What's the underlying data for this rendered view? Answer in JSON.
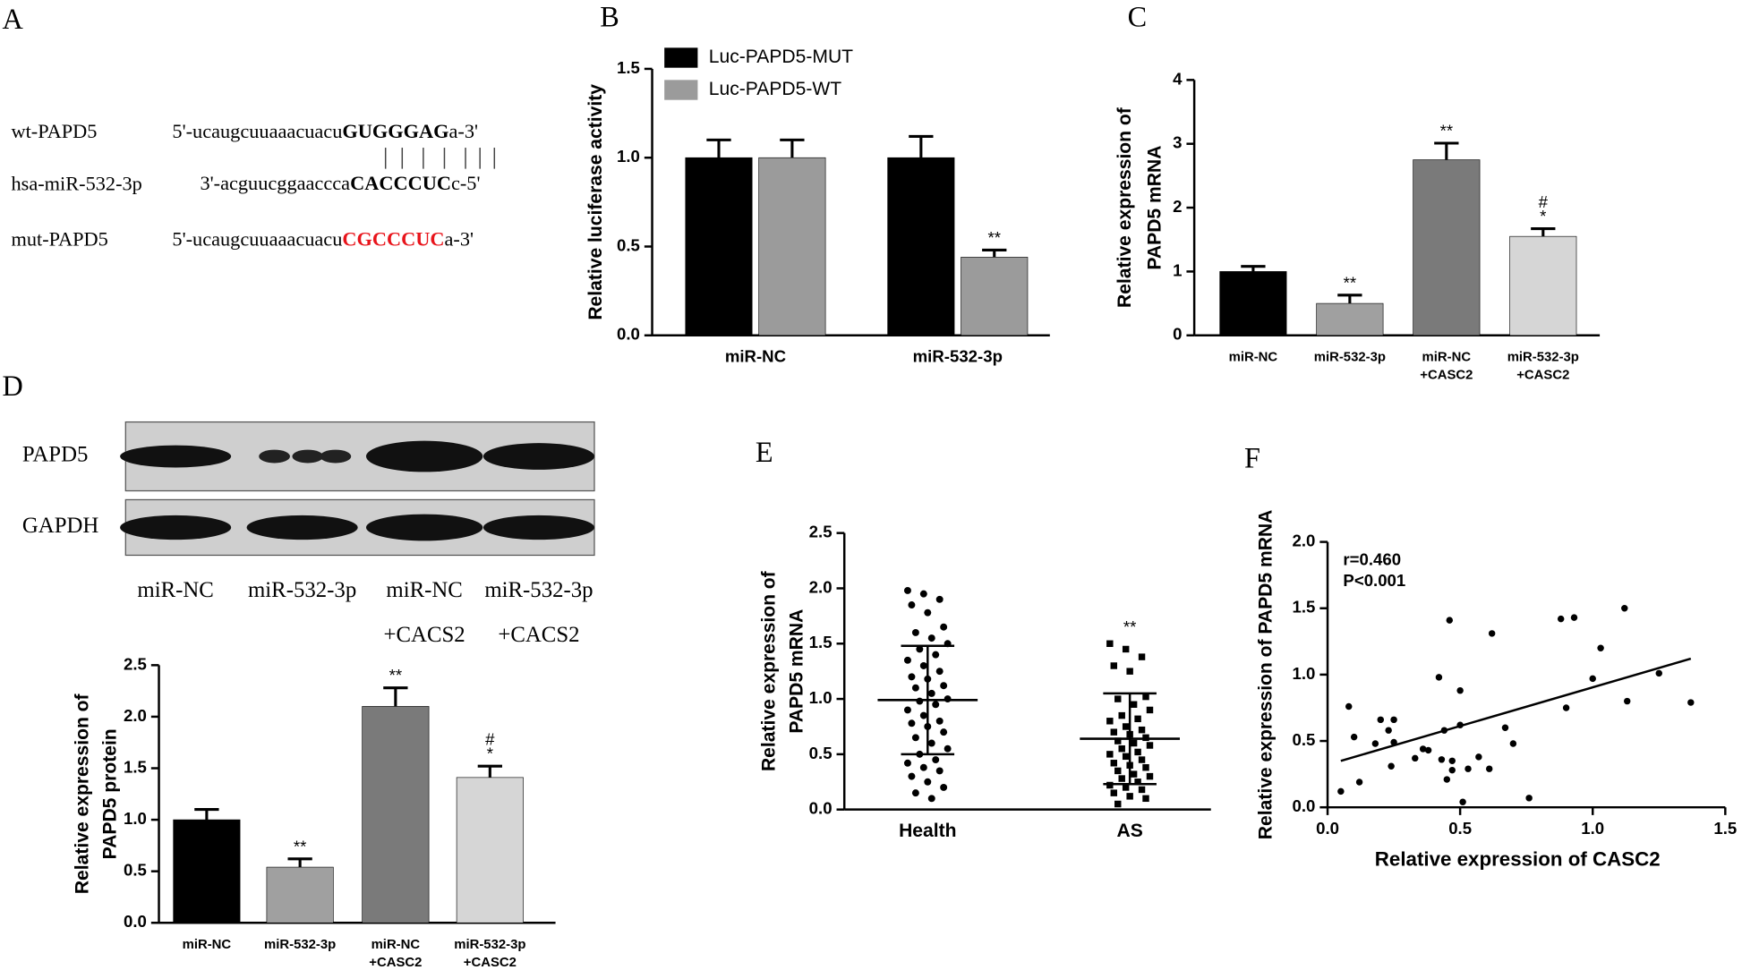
{
  "panel_a": {
    "label": "A",
    "rows": [
      {
        "name": "wt-PAPD5",
        "prefix": "5'-ucaugcuuaaacuacu",
        "site": "GUGGGAG",
        "suffix": "a-3'"
      },
      {
        "name": "hsa-miR-532-3p",
        "prefix": "3'-acguucggaaccca",
        "site": "CACCCUC",
        "suffix": "c-5'"
      },
      {
        "name": "mut-PAPD5",
        "prefix": "5'-ucaugcuuaaacuacu",
        "site": "CGCCCUC",
        "suffix": "a-3'"
      }
    ]
  },
  "panel_d_blot": {
    "label": "D",
    "bands": [
      "PAPD5",
      "GAPDH"
    ],
    "lanes": [
      [
        "miR-NC"
      ],
      [
        "miR-532-3p"
      ],
      [
        "miR-NC",
        "+CACS2"
      ],
      [
        "miR-532-3p",
        "+CACS2"
      ]
    ]
  },
  "chart_data": [
    {
      "type": "grouped_bar",
      "panel": "B",
      "ylabel": [
        "Relative luciferase activity"
      ],
      "categories": [
        [
          "miR-NC"
        ],
        [
          "miR-532-3p"
        ]
      ],
      "series": [
        {
          "name": "Luc-PAPD5-MUT",
          "color": "#000000",
          "values": [
            1.0,
            1.0
          ],
          "errors": [
            0.1,
            0.12
          ]
        },
        {
          "name": "Luc-PAPD5-WT",
          "color": "#9b9b9b",
          "values": [
            1.0,
            0.44
          ],
          "errors": [
            0.1,
            0.04
          ]
        }
      ],
      "annotations": [
        {
          "series": 1,
          "index": 1,
          "lines": [
            "**"
          ]
        }
      ],
      "ylim": [
        0,
        1.5
      ],
      "yticks": [
        {
          "value": 0,
          "label": "0.0"
        },
        0.5,
        {
          "value": 1,
          "label": "1.0"
        },
        1.5
      ],
      "legend": "upper left"
    },
    {
      "type": "bar",
      "panel": "C",
      "ylabel": [
        "Relative expression of",
        "PAPD5 mRNA"
      ],
      "categories": [
        [
          "miR-NC"
        ],
        [
          "miR-532-3p"
        ],
        [
          "miR-NC",
          "+CASC2"
        ],
        [
          "miR-532-3p",
          "+CASC2"
        ]
      ],
      "values": [
        1.0,
        0.5,
        2.75,
        1.55
      ],
      "errors": [
        0.08,
        0.13,
        0.26,
        0.12
      ],
      "colors": [
        "#000000",
        "#a0a0a0",
        "#7a7a7a",
        "#d6d6d6"
      ],
      "annotations": [
        {
          "index": 1,
          "lines": [
            "**"
          ]
        },
        {
          "index": 2,
          "lines": [
            "**"
          ]
        },
        {
          "index": 3,
          "lines": [
            "#",
            "*"
          ]
        }
      ],
      "ylim": [
        0,
        4
      ],
      "yticks": [
        0,
        1,
        2,
        3,
        4
      ]
    },
    {
      "type": "bar",
      "ylabel": [
        "Relative expression of",
        "PAPD5 protein"
      ],
      "categories": [
        [
          "miR-NC"
        ],
        [
          "miR-532-3p"
        ],
        [
          "miR-NC",
          "+CASC2"
        ],
        [
          "miR-532-3p",
          "+CASC2"
        ]
      ],
      "values": [
        1.0,
        0.54,
        2.1,
        1.41
      ],
      "errors": [
        0.1,
        0.08,
        0.18,
        0.11
      ],
      "colors": [
        "#000000",
        "#a0a0a0",
        "#7a7a7a",
        "#d6d6d6"
      ],
      "annotations": [
        {
          "index": 1,
          "lines": [
            "**"
          ]
        },
        {
          "index": 2,
          "lines": [
            "**"
          ]
        },
        {
          "index": 3,
          "lines": [
            "#",
            "*"
          ]
        }
      ],
      "ylim": [
        0,
        2.5
      ],
      "yticks": [
        {
          "value": 0,
          "label": "0.0"
        },
        0.5,
        {
          "value": 1,
          "label": "1.0"
        },
        1.5,
        {
          "value": 2,
          "label": "2.0"
        },
        2.5
      ]
    },
    {
      "type": "dot_plot",
      "panel": "E",
      "ylabel": [
        "Relative expression of",
        "PAPD5 mRNA"
      ],
      "categories": [
        "Health",
        "AS"
      ],
      "markers": [
        "circle",
        "square"
      ],
      "points": [
        [
          1.98,
          1.95,
          1.9,
          1.85,
          1.78,
          1.65,
          1.6,
          1.55,
          1.5,
          1.45,
          1.4,
          1.35,
          1.3,
          1.25,
          1.2,
          1.18,
          1.12,
          1.1,
          1.05,
          1.0,
          0.98,
          0.95,
          0.9,
          0.85,
          0.8,
          0.78,
          0.75,
          0.7,
          0.65,
          0.6,
          0.55,
          0.5,
          0.45,
          0.42,
          0.38,
          0.35,
          0.3,
          0.25,
          0.2,
          0.15,
          0.1
        ],
        [
          1.5,
          1.45,
          1.38,
          1.3,
          1.25,
          1.02,
          1.0,
          0.95,
          0.9,
          0.85,
          0.82,
          0.8,
          0.75,
          0.72,
          0.7,
          0.68,
          0.65,
          0.62,
          0.6,
          0.58,
          0.55,
          0.52,
          0.5,
          0.48,
          0.45,
          0.42,
          0.4,
          0.38,
          0.35,
          0.32,
          0.3,
          0.28,
          0.25,
          0.22,
          0.2,
          0.18,
          0.15,
          0.12,
          0.1,
          0.05
        ]
      ],
      "mean": [
        0.99,
        0.64
      ],
      "sd": [
        0.49,
        0.41
      ],
      "annotations": [
        {
          "index": 1,
          "lines": [
            "**"
          ]
        }
      ],
      "ylim": [
        0,
        2.5
      ],
      "yticks": [
        {
          "value": 0,
          "label": "0.0"
        },
        0.5,
        {
          "value": 1,
          "label": "1.0"
        },
        1.5,
        {
          "value": 2,
          "label": "2.0"
        },
        2.5
      ]
    },
    {
      "type": "scatter",
      "panel": "F",
      "xlabel": "Relative expression of CASC2",
      "ylabel": [
        "Relative expression of PAPD5 mRNA"
      ],
      "x": [
        0.05,
        0.08,
        0.1,
        0.12,
        0.18,
        0.2,
        0.23,
        0.24,
        0.25,
        0.25,
        0.33,
        0.36,
        0.38,
        0.42,
        0.43,
        0.44,
        0.45,
        0.46,
        0.47,
        0.47,
        0.5,
        0.5,
        0.51,
        0.53,
        0.57,
        0.61,
        0.62,
        0.67,
        0.7,
        0.76,
        0.88,
        0.9,
        0.93,
        1.0,
        1.03,
        1.12,
        1.13,
        1.25,
        1.37
      ],
      "y": [
        0.12,
        0.76,
        0.53,
        0.19,
        0.48,
        0.66,
        0.58,
        0.31,
        0.66,
        0.49,
        0.37,
        0.44,
        0.43,
        0.98,
        0.36,
        0.58,
        0.21,
        1.41,
        0.28,
        0.35,
        0.62,
        0.88,
        0.04,
        0.29,
        0.38,
        0.29,
        1.31,
        0.6,
        0.48,
        0.07,
        1.42,
        0.75,
        1.43,
        0.97,
        1.2,
        1.5,
        0.8,
        1.01,
        0.79
      ],
      "fit": {
        "x": [
          0.05,
          1.37
        ],
        "y": [
          0.35,
          1.12
        ]
      },
      "annotations": [
        "r=0.460",
        "P<0.001"
      ],
      "xlim": [
        0,
        1.5
      ],
      "xticks": [
        {
          "value": 0,
          "label": "0.0"
        },
        0.5,
        {
          "value": 1,
          "label": "1.0"
        },
        1.5
      ],
      "ylim": [
        0,
        2
      ],
      "yticks": [
        {
          "value": 0,
          "label": "0.0"
        },
        0.5,
        {
          "value": 1,
          "label": "1.0"
        },
        1.5,
        {
          "value": 2,
          "label": "2.0"
        }
      ]
    }
  ]
}
